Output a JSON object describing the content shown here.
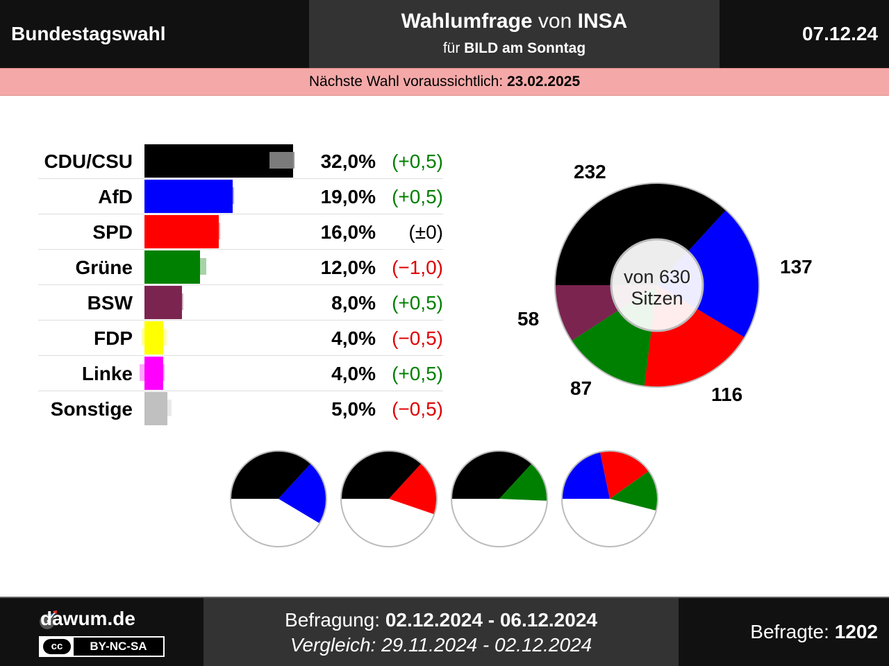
{
  "header": {
    "left_title": "Bundestagswahl",
    "poll_word": "Wahlumfrage",
    "poll_von": "von",
    "institute": "INSA",
    "fuer": "für",
    "client": "BILD am Sonntag",
    "date": "07.12.24"
  },
  "next_election": {
    "label": "Nächste Wahl voraussichtlich:",
    "date": "23.02.2025"
  },
  "colors": {
    "CDU/CSU": "#000000",
    "AfD": "#0000ff",
    "SPD": "#ff0000",
    "Grüne": "#008000",
    "BSW": "#7b2450",
    "FDP": "#ffff00",
    "Linke": "#ff00ff",
    "Sonstige": "#c0c0c0",
    "positive": "#008000",
    "negative": "#e00000",
    "neutral": "#000000"
  },
  "chart_data": [
    {
      "type": "bar",
      "orientation": "horizontal",
      "categories": [
        "CDU/CSU",
        "AfD",
        "SPD",
        "Grüne",
        "BSW",
        "FDP",
        "Linke",
        "Sonstige"
      ],
      "values": [
        32.0,
        19.0,
        16.0,
        12.0,
        8.0,
        4.0,
        4.0,
        5.0
      ],
      "previous_values": [
        31.5,
        18.5,
        16.0,
        13.0,
        7.5,
        4.5,
        3.5,
        5.5
      ],
      "value_labels": [
        "32,0%",
        "19,0%",
        "16,0%",
        "12,0%",
        "8,0%",
        "4,0%",
        "4,0%",
        "5,0%"
      ],
      "change_labels": [
        "(+0,5)",
        "(+0,5)",
        "(±0)",
        "(−1,0)",
        "(+0,5)",
        "(−0,5)",
        "(+0,5)",
        "(−0,5)"
      ],
      "change_sign": [
        "positive",
        "positive",
        "neutral",
        "negative",
        "positive",
        "negative",
        "positive",
        "negative"
      ],
      "xlim": [
        0,
        32
      ]
    },
    {
      "type": "pie",
      "variant": "donut",
      "center_line1": "von 630",
      "center_line2": "Sitzen",
      "total": 630,
      "slices": [
        {
          "name": "CDU/CSU",
          "value": 232
        },
        {
          "name": "AfD",
          "value": 137
        },
        {
          "name": "SPD",
          "value": 116
        },
        {
          "name": "Grüne",
          "value": 87
        },
        {
          "name": "BSW",
          "value": 58
        }
      ]
    },
    {
      "type": "pie",
      "variant": "coalition-half",
      "coalitions": [
        [
          "CDU/CSU",
          "AfD"
        ],
        [
          "CDU/CSU",
          "SPD"
        ],
        [
          "CDU/CSU",
          "Grüne"
        ],
        [
          "AfD",
          "SPD",
          "Grüne"
        ]
      ]
    }
  ],
  "footer": {
    "site": "dawum.de",
    "cc": "cc",
    "license": "BY-NC-SA",
    "survey_label": "Befragung:",
    "survey_period": "02.12.2024 - 06.12.2024",
    "compare_label": "Vergleich:",
    "compare_period": "29.11.2024 - 02.12.2024",
    "respondents_label": "Befragte:",
    "respondents": "1202"
  }
}
